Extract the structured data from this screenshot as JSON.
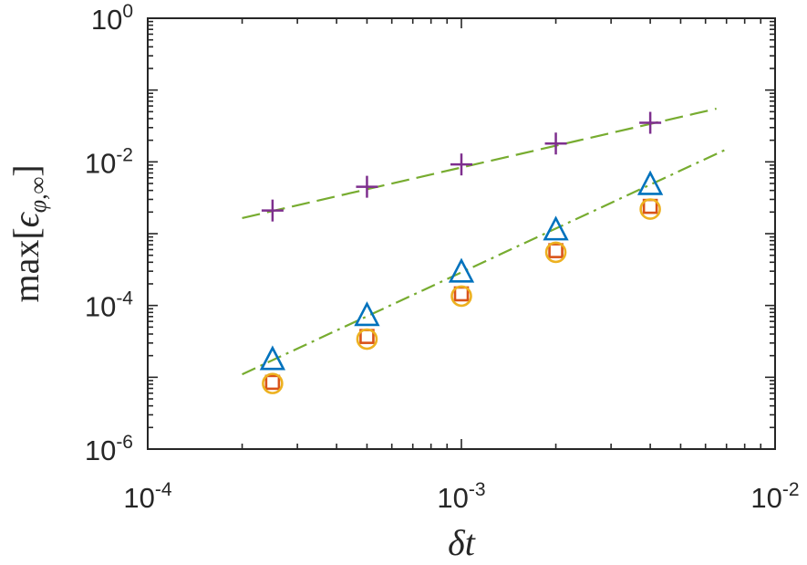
{
  "chart_data": {
    "type": "scatter",
    "xscale": "log",
    "yscale": "log",
    "xlim": [
      0.0001,
      0.01
    ],
    "ylim": [
      1e-06,
      1
    ],
    "xlabel": "δt",
    "ylabel": "max[ϵφ,∞]",
    "x_ticks": [
      {
        "value": 0.0001,
        "base": "10",
        "exp": "-4"
      },
      {
        "value": 0.001,
        "base": "10",
        "exp": "-3"
      },
      {
        "value": 0.01,
        "base": "10",
        "exp": "-2"
      }
    ],
    "y_ticks": [
      {
        "value": 1e-06,
        "base": "10",
        "exp": "-6"
      },
      {
        "value": 0.0001,
        "base": "10",
        "exp": "-4"
      },
      {
        "value": 0.01,
        "base": "10",
        "exp": "-2"
      },
      {
        "value": 1,
        "base": "10",
        "exp": "0"
      }
    ],
    "grid": false,
    "box": true,
    "series": [
      {
        "name": "plus",
        "marker": "plus",
        "color": "#7e2f8e",
        "x": [
          0.00025,
          0.0005,
          0.001,
          0.002,
          0.004
        ],
        "y": [
          0.0021,
          0.0045,
          0.0092,
          0.018,
          0.035
        ]
      },
      {
        "name": "triangle",
        "marker": "triangle",
        "color": "#0072bd",
        "x": [
          0.00025,
          0.0005,
          0.001,
          0.002,
          0.004
        ],
        "y": [
          1.75e-05,
          7.2e-05,
          0.00029,
          0.00112,
          0.0048
        ]
      },
      {
        "name": "square",
        "marker": "square",
        "color": "#d95319",
        "x": [
          0.00025,
          0.0005,
          0.001,
          0.002,
          0.004
        ],
        "y": [
          8.5e-06,
          3.7e-05,
          0.000145,
          0.00058,
          0.0024
        ]
      },
      {
        "name": "circle",
        "marker": "circle",
        "color": "#edb120",
        "x": [
          0.00025,
          0.0005,
          0.001,
          0.002,
          0.004
        ],
        "y": [
          8.2e-06,
          3.4e-05,
          0.000135,
          0.00055,
          0.0022
        ]
      }
    ],
    "reference_lines": [
      {
        "name": "first-order",
        "style": "dashed",
        "color": "#77ac30",
        "x": [
          0.0002,
          0.0065
        ],
        "y": [
          0.00165,
          0.055
        ]
      },
      {
        "name": "second-order",
        "style": "dashdot",
        "color": "#77ac30",
        "x": [
          0.0002,
          0.007
        ],
        "y": [
          1.1e-05,
          0.015
        ]
      }
    ]
  }
}
